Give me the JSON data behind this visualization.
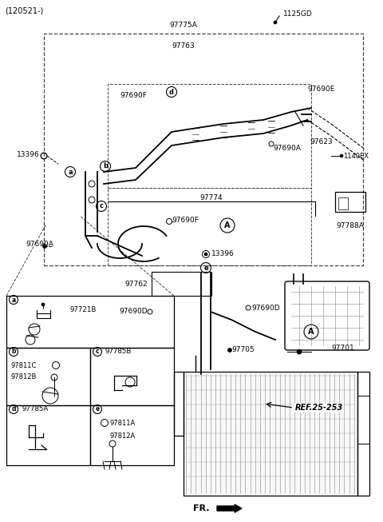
{
  "bg_color": "#ffffff",
  "fig_width": 4.8,
  "fig_height": 6.53,
  "dpi": 100,
  "header_text": "(120521-)",
  "ref_text": "REF.25-253",
  "fr_text": "FR."
}
